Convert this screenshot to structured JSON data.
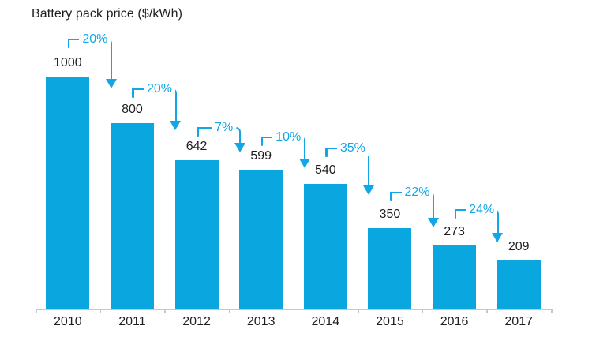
{
  "colors": {
    "bar": "#09a6e0",
    "annotation": "#12a6e6",
    "axis": "#c5c7c9",
    "text": "#1f1f21",
    "background": "#ffffff"
  },
  "chart_data": {
    "type": "bar",
    "title": "Battery pack price ($/kWh)",
    "xlabel": "",
    "ylabel": "$/kWh",
    "ylim": [
      0,
      1000
    ],
    "grid": false,
    "legend": null,
    "categories": [
      "2010",
      "2011",
      "2012",
      "2013",
      "2014",
      "2015",
      "2016",
      "2017"
    ],
    "values": [
      1000,
      800,
      642,
      599,
      540,
      350,
      273,
      209
    ],
    "value_labels": [
      "1000",
      "800",
      "642",
      "599",
      "540",
      "350",
      "273",
      "209"
    ],
    "annotations": [
      {
        "between": [
          "2010",
          "2011"
        ],
        "label": "20%"
      },
      {
        "between": [
          "2011",
          "2012"
        ],
        "label": "20%"
      },
      {
        "between": [
          "2012",
          "2013"
        ],
        "label": "7%"
      },
      {
        "between": [
          "2013",
          "2014"
        ],
        "label": "10%"
      },
      {
        "between": [
          "2014",
          "2015"
        ],
        "label": "35%"
      },
      {
        "between": [
          "2015",
          "2016"
        ],
        "label": "22%"
      },
      {
        "between": [
          "2016",
          "2017"
        ],
        "label": "24%"
      }
    ]
  }
}
